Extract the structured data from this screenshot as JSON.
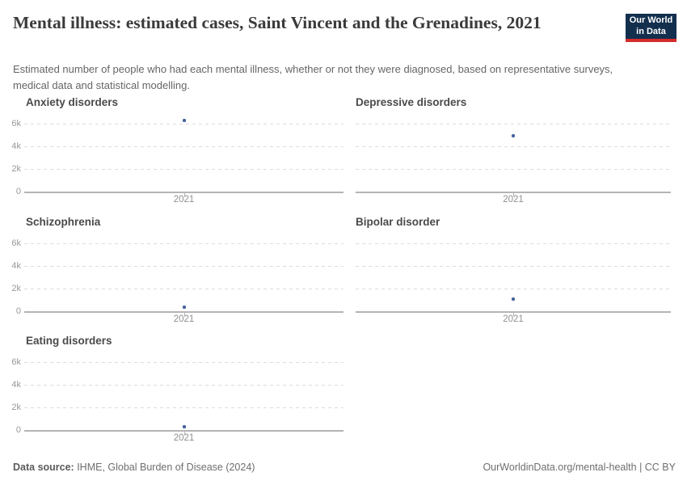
{
  "header": {
    "title": "Mental illness: estimated cases, Saint Vincent and the Grenadines, 2021",
    "subtitle": "Estimated number of people who had each mental illness, whether or not they were diagnosed, based on representative surveys, medical data and statistical modelling.",
    "logo": {
      "line1": "Our World",
      "line2": "in Data"
    }
  },
  "axis": {
    "y_ticks": [
      "6k",
      "4k",
      "2k",
      "0"
    ]
  },
  "colors": {
    "point": "#45639D",
    "logo_navy": "#132F4E",
    "logo_red": "#D42B2B",
    "grid": "#DCDCDC",
    "axis_line": "#B4B4B4"
  },
  "chart_data": [
    {
      "type": "scatter",
      "title": "Anxiety disorders",
      "x": [
        2021
      ],
      "values": [
        6300
      ],
      "x_tick_label": "2021",
      "xlabel": "",
      "ylabel": "",
      "y_tick_labels": [
        "0",
        "2k",
        "4k",
        "6k"
      ],
      "ylim": [
        0,
        6000
      ],
      "grid": "dashed-horizontal",
      "legend": "none"
    },
    {
      "type": "scatter",
      "title": "Depressive disorders",
      "x": [
        2021
      ],
      "values": [
        4900
      ],
      "x_tick_label": "2021",
      "xlabel": "",
      "ylabel": "",
      "y_tick_labels": [
        "0",
        "2k",
        "4k",
        "6k"
      ],
      "ylim": [
        0,
        6000
      ],
      "grid": "dashed-horizontal",
      "legend": "none"
    },
    {
      "type": "scatter",
      "title": "Schizophrenia",
      "x": [
        2021
      ],
      "values": [
        340
      ],
      "x_tick_label": "2021",
      "xlabel": "",
      "ylabel": "",
      "y_tick_labels": [
        "0",
        "2k",
        "4k",
        "6k"
      ],
      "ylim": [
        0,
        6000
      ],
      "grid": "dashed-horizontal",
      "legend": "none"
    },
    {
      "type": "scatter",
      "title": "Bipolar disorder",
      "x": [
        2021
      ],
      "values": [
        1050
      ],
      "x_tick_label": "2021",
      "xlabel": "",
      "ylabel": "",
      "y_tick_labels": [
        "0",
        "2k",
        "4k",
        "6k"
      ],
      "ylim": [
        0,
        6000
      ],
      "grid": "dashed-horizontal",
      "legend": "none"
    },
    {
      "type": "scatter",
      "title": "Eating disorders",
      "x": [
        2021
      ],
      "values": [
        260
      ],
      "x_tick_label": "2021",
      "xlabel": "",
      "ylabel": "",
      "y_tick_labels": [
        "0",
        "2k",
        "4k",
        "6k"
      ],
      "ylim": [
        0,
        6000
      ],
      "grid": "dashed-horizontal",
      "legend": "none"
    }
  ],
  "footer": {
    "source_label": "Data source:",
    "source_text": " IHME, Global Burden of Disease (2024)",
    "link_text": "OurWorldinData.org/mental-health | CC BY"
  }
}
